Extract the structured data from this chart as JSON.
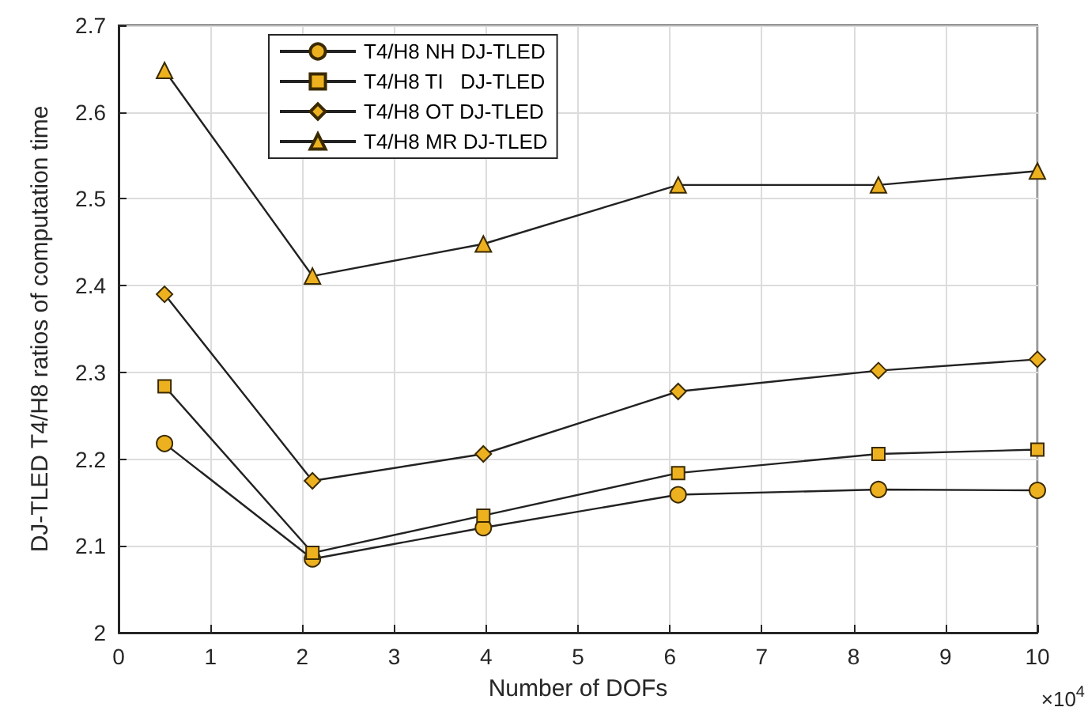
{
  "chart_data": {
    "type": "line",
    "xlabel": "Number of DOFs",
    "ylabel": "DJ-TLED T4/H8 ratios of computation time",
    "annotations": [
      "×10$^{4}$"
    ],
    "x": [
      0.5,
      2.11,
      3.97,
      6.09,
      8.27,
      10
    ],
    "series": [
      {
        "name": "T4/H8 NH DJ-TLED",
        "color": "#edb120",
        "marker": "circle",
        "values": [
          2.218,
          2.085,
          2.121,
          2.159,
          2.165,
          2.164
        ]
      },
      {
        "name": "T4/H8 TI   DJ-TLED",
        "color": "#edb120",
        "marker": "square",
        "values": [
          2.284,
          2.092,
          2.135,
          2.184,
          2.206,
          2.211
        ]
      },
      {
        "name": "T4/H8 OT DJ-TLED",
        "color": "#edb120",
        "marker": "diamond",
        "values": [
          2.39,
          2.175,
          2.206,
          2.278,
          2.302,
          2.315
        ]
      },
      {
        "name": "T4/H8 MR DJ-TLED",
        "color": "#edb120",
        "marker": "triangle",
        "values": [
          2.648,
          2.411,
          2.448,
          2.516,
          2.516,
          2.532
        ]
      }
    ],
    "xlim": [
      0,
      10
    ],
    "xticks": [
      0,
      1,
      2,
      3,
      4,
      5,
      6,
      7,
      8,
      9,
      10
    ],
    "ylim": [
      2,
      2.7
    ],
    "yticks": [
      2,
      2.1,
      2.2,
      2.3,
      2.4,
      2.5,
      2.6,
      2.7
    ],
    "grid": true,
    "legend": "top left",
    "line_style": "solid"
  }
}
